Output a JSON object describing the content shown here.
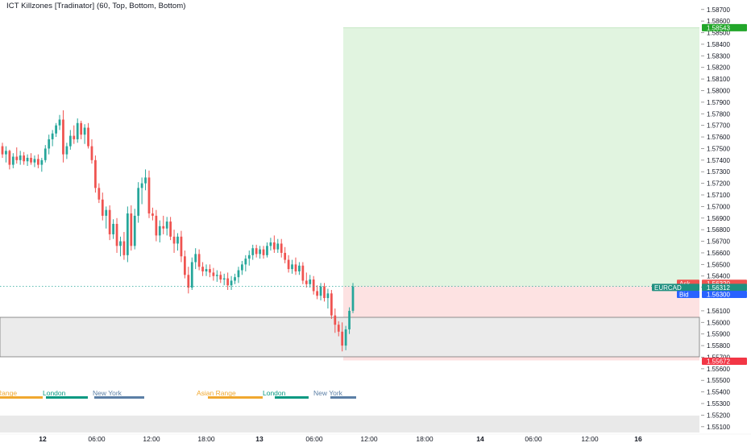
{
  "indicator": {
    "title": "ICT Killzones [Tradinator] (60, Top, Bottom, Bottom)"
  },
  "symbol": "EURCAD",
  "colors": {
    "background": "#ffffff",
    "bull": "#26a69a",
    "bear": "#ef5350",
    "target_zone": "#e1f4e0",
    "stop_zone": "#fde2e2",
    "range_box": "#ebebeb",
    "asian": "#f0a830",
    "london": "#089981",
    "new_york": "#5b7fa6"
  },
  "price_axis": {
    "ticks": [
      "1.58700",
      "1.58600",
      "1.58500",
      "1.58400",
      "1.58300",
      "1.58200",
      "1.58100",
      "1.58000",
      "1.57900",
      "1.57800",
      "1.57700",
      "1.57600",
      "1.57500",
      "1.57400",
      "1.57300",
      "1.57200",
      "1.57100",
      "1.57000",
      "1.56900",
      "1.56800",
      "1.56700",
      "1.56600",
      "1.56500",
      "1.56400",
      "1.56305",
      "1.56100",
      "1.56000",
      "1.55900",
      "1.55800",
      "1.55700",
      "1.55600",
      "1.55500",
      "1.55400",
      "1.55300",
      "1.55200",
      "1.55100"
    ]
  },
  "price_labels": {
    "target": {
      "value": "1.58543",
      "color": "#22a62a"
    },
    "ask": {
      "label": "Ask",
      "value": "1.56320",
      "color": "#ef5350"
    },
    "last": {
      "label": "EURCAD",
      "value": "1.56312",
      "color": "#1f9080"
    },
    "bid": {
      "label": "Bid",
      "value": "1.56300",
      "color": "#2962ff"
    },
    "stop": {
      "value": "1.55672",
      "color": "#f23645"
    }
  },
  "time_axis": {
    "labels": [
      {
        "text": "12",
        "bold": true
      },
      {
        "text": "06:00",
        "bold": false
      },
      {
        "text": "12:00",
        "bold": false
      },
      {
        "text": "18:00",
        "bold": false
      },
      {
        "text": "13",
        "bold": true
      },
      {
        "text": "06:00",
        "bold": false
      },
      {
        "text": "12:00",
        "bold": false
      },
      {
        "text": "18:00",
        "bold": false
      },
      {
        "text": "14",
        "bold": true
      },
      {
        "text": "06:00",
        "bold": false
      },
      {
        "text": "12:00",
        "bold": false
      },
      {
        "text": "16",
        "bold": true
      }
    ]
  },
  "sessions": [
    {
      "name": "Asian Range",
      "label": "Range",
      "kind": "asian"
    },
    {
      "name": "London",
      "label": "London",
      "kind": "london"
    },
    {
      "name": "New York",
      "label": "New York",
      "kind": "new_york"
    },
    {
      "name": "Asian Range",
      "label": "Asian Range",
      "kind": "asian"
    },
    {
      "name": "London",
      "label": "London",
      "kind": "london"
    },
    {
      "name": "New York",
      "label": "New York",
      "kind": "new_york"
    }
  ],
  "position": {
    "entry": 1.56312,
    "target": 1.58543,
    "stop": 1.55672
  },
  "chart_data": {
    "type": "candlestick",
    "symbol": "EURCAD",
    "timeframe": "60",
    "candles": [
      [
        1.5752,
        1.5755,
        1.5742,
        1.5745
      ],
      [
        1.5745,
        1.5752,
        1.5738,
        1.5748
      ],
      [
        1.5748,
        1.5749,
        1.5732,
        1.5736
      ],
      [
        1.5736,
        1.5746,
        1.5733,
        1.5743
      ],
      [
        1.5743,
        1.5751,
        1.5737,
        1.574
      ],
      [
        1.574,
        1.5748,
        1.5736,
        1.5744
      ],
      [
        1.5744,
        1.5747,
        1.5736,
        1.5739
      ],
      [
        1.5739,
        1.5745,
        1.5735,
        1.5742
      ],
      [
        1.5742,
        1.5746,
        1.5736,
        1.5738
      ],
      [
        1.5738,
        1.5744,
        1.5734,
        1.5741
      ],
      [
        1.5741,
        1.5745,
        1.5733,
        1.5736
      ],
      [
        1.5736,
        1.5742,
        1.573,
        1.574
      ],
      [
        1.574,
        1.5753,
        1.5738,
        1.575
      ],
      [
        1.575,
        1.5762,
        1.5745,
        1.5758
      ],
      [
        1.5758,
        1.5766,
        1.5752,
        1.5763
      ],
      [
        1.5763,
        1.5772,
        1.576,
        1.577
      ],
      [
        1.577,
        1.5779,
        1.5766,
        1.5775
      ],
      [
        1.5775,
        1.5783,
        1.5738,
        1.5745
      ],
      [
        1.5745,
        1.5755,
        1.5741,
        1.5752
      ],
      [
        1.5752,
        1.5766,
        1.5749,
        1.5761
      ],
      [
        1.5761,
        1.577,
        1.5754,
        1.5758
      ],
      [
        1.5758,
        1.5776,
        1.5755,
        1.5772
      ],
      [
        1.5772,
        1.5774,
        1.5758,
        1.5762
      ],
      [
        1.5762,
        1.5771,
        1.5754,
        1.5768
      ],
      [
        1.5768,
        1.5772,
        1.575,
        1.5752
      ],
      [
        1.5752,
        1.5758,
        1.5737,
        1.574
      ],
      [
        1.574,
        1.5744,
        1.5712,
        1.5716
      ],
      [
        1.5716,
        1.572,
        1.5703,
        1.5706
      ],
      [
        1.5706,
        1.5712,
        1.5688,
        1.5692
      ],
      [
        1.5692,
        1.57,
        1.5681,
        1.5697
      ],
      [
        1.5697,
        1.5701,
        1.5671,
        1.5676
      ],
      [
        1.5676,
        1.5689,
        1.5672,
        1.5685
      ],
      [
        1.5685,
        1.569,
        1.566,
        1.5666
      ],
      [
        1.5666,
        1.5674,
        1.5657,
        1.567
      ],
      [
        1.567,
        1.5678,
        1.5654,
        1.5658
      ],
      [
        1.5658,
        1.57,
        1.5652,
        1.5694
      ],
      [
        1.5694,
        1.5701,
        1.5662,
        1.5666
      ],
      [
        1.5666,
        1.5698,
        1.5663,
        1.5692
      ],
      [
        1.5692,
        1.5721,
        1.5686,
        1.5716
      ],
      [
        1.5716,
        1.5725,
        1.5702,
        1.572
      ],
      [
        1.572,
        1.5732,
        1.5714,
        1.5725
      ],
      [
        1.5725,
        1.5731,
        1.569,
        1.5694
      ],
      [
        1.5694,
        1.5699,
        1.5688,
        1.5692
      ],
      [
        1.5692,
        1.5697,
        1.567,
        1.5675
      ],
      [
        1.5675,
        1.5688,
        1.5669,
        1.5683
      ],
      [
        1.5683,
        1.5692,
        1.5676,
        1.5681
      ],
      [
        1.5681,
        1.5691,
        1.5675,
        1.5687
      ],
      [
        1.5687,
        1.5691,
        1.5671,
        1.5674
      ],
      [
        1.5674,
        1.568,
        1.566,
        1.5668
      ],
      [
        1.5668,
        1.5677,
        1.5662,
        1.5674
      ],
      [
        1.5674,
        1.5679,
        1.5652,
        1.5657
      ],
      [
        1.5657,
        1.5662,
        1.5638,
        1.5641
      ],
      [
        1.5641,
        1.5648,
        1.5625,
        1.563
      ],
      [
        1.563,
        1.5656,
        1.5628,
        1.5652
      ],
      [
        1.5652,
        1.5664,
        1.5646,
        1.5659
      ],
      [
        1.5659,
        1.5663,
        1.5645,
        1.5648
      ],
      [
        1.5648,
        1.5652,
        1.564,
        1.5644
      ],
      [
        1.5644,
        1.565,
        1.564,
        1.5646
      ],
      [
        1.5646,
        1.565,
        1.5639,
        1.5643
      ],
      [
        1.5643,
        1.5647,
        1.5636,
        1.564
      ],
      [
        1.564,
        1.5645,
        1.5635,
        1.5641
      ],
      [
        1.5641,
        1.5644,
        1.5634,
        1.5637
      ],
      [
        1.5637,
        1.5642,
        1.5632,
        1.5638
      ],
      [
        1.5638,
        1.5643,
        1.5628,
        1.5632
      ],
      [
        1.5632,
        1.564,
        1.5628,
        1.5636
      ],
      [
        1.5636,
        1.5642,
        1.5633,
        1.5639
      ],
      [
        1.5639,
        1.5648,
        1.5634,
        1.5645
      ],
      [
        1.5645,
        1.5653,
        1.5641,
        1.565
      ],
      [
        1.565,
        1.5658,
        1.5644,
        1.5655
      ],
      [
        1.5655,
        1.5662,
        1.5649,
        1.5658
      ],
      [
        1.5658,
        1.5667,
        1.5654,
        1.5664
      ],
      [
        1.5664,
        1.5667,
        1.5656,
        1.5659
      ],
      [
        1.5659,
        1.5666,
        1.5655,
        1.5663
      ],
      [
        1.5663,
        1.5666,
        1.5655,
        1.5658
      ],
      [
        1.5658,
        1.5669,
        1.5656,
        1.5666
      ],
      [
        1.5666,
        1.5673,
        1.5662,
        1.5669
      ],
      [
        1.5669,
        1.5675,
        1.566,
        1.5663
      ],
      [
        1.5663,
        1.5672,
        1.566,
        1.5668
      ],
      [
        1.5668,
        1.5672,
        1.5656,
        1.566
      ],
      [
        1.566,
        1.5665,
        1.5651,
        1.5654
      ],
      [
        1.5654,
        1.5658,
        1.5643,
        1.5646
      ],
      [
        1.5646,
        1.5654,
        1.5642,
        1.565
      ],
      [
        1.565,
        1.5656,
        1.5641,
        1.5644
      ],
      [
        1.5644,
        1.5652,
        1.5641,
        1.5649
      ],
      [
        1.5649,
        1.5652,
        1.5633,
        1.5636
      ],
      [
        1.5636,
        1.5643,
        1.563,
        1.5633
      ],
      [
        1.5633,
        1.5641,
        1.563,
        1.5637
      ],
      [
        1.5637,
        1.564,
        1.5624,
        1.5627
      ],
      [
        1.5627,
        1.5632,
        1.562,
        1.5623
      ],
      [
        1.5623,
        1.5634,
        1.5619,
        1.5631
      ],
      [
        1.5631,
        1.5634,
        1.5618,
        1.5621
      ],
      [
        1.5621,
        1.5629,
        1.5612,
        1.5625
      ],
      [
        1.5625,
        1.5628,
        1.5603,
        1.5606
      ],
      [
        1.5606,
        1.5612,
        1.5591,
        1.5598
      ],
      [
        1.5598,
        1.5601,
        1.5588,
        1.5592
      ],
      [
        1.5592,
        1.56,
        1.5575,
        1.558
      ],
      [
        1.558,
        1.5597,
        1.5576,
        1.5594
      ],
      [
        1.5594,
        1.5613,
        1.559,
        1.561
      ],
      [
        1.561,
        1.5634,
        1.5608,
        1.5631
      ]
    ],
    "ylim": [
      1.5505,
      1.5874
    ]
  }
}
